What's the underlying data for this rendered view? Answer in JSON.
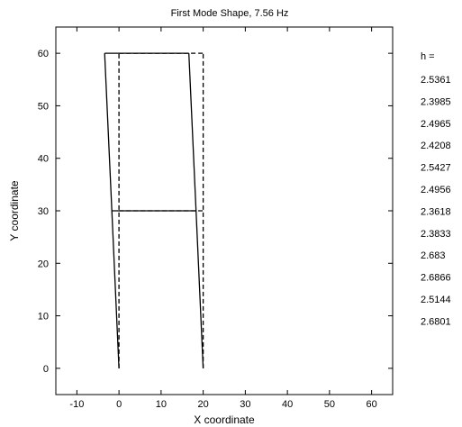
{
  "chart_data": {
    "type": "line",
    "title": "First Mode Shape, 7.56 Hz",
    "xlabel": "X coordinate",
    "ylabel": "Y coordinate",
    "xlim": [
      -15,
      65
    ],
    "ylim": [
      -5,
      65
    ],
    "xticks": [
      -10,
      0,
      10,
      20,
      30,
      40,
      50,
      60
    ],
    "yticks": [
      0,
      10,
      20,
      30,
      40,
      50,
      60
    ],
    "grid": false,
    "series": [
      {
        "style": "dashed",
        "segments": [
          [
            [
              0,
              0
            ],
            [
              0,
              60
            ]
          ],
          [
            [
              20,
              0
            ],
            [
              20,
              60
            ]
          ],
          [
            [
              0,
              30
            ],
            [
              20,
              30
            ]
          ],
          [
            [
              0,
              60
            ],
            [
              20,
              60
            ]
          ]
        ]
      },
      {
        "style": "solid",
        "segments": [
          [
            [
              0,
              0
            ],
            [
              -1.7,
              30
            ],
            [
              -3.4,
              60
            ]
          ],
          [
            [
              20,
              0
            ],
            [
              18.3,
              30
            ],
            [
              16.6,
              60
            ]
          ],
          [
            [
              -1.7,
              30
            ],
            [
              18.3,
              30
            ]
          ],
          [
            [
              -3.4,
              60
            ],
            [
              16.6,
              60
            ]
          ]
        ]
      }
    ],
    "side_panel": {
      "header": "h =",
      "values": [
        "2.5361",
        "2.3985",
        "2.4965",
        "2.4208",
        "2.5427",
        "2.4956",
        "2.3618",
        "2.3833",
        "2.683",
        "2.6866",
        "2.5144",
        "2.6801"
      ]
    }
  }
}
